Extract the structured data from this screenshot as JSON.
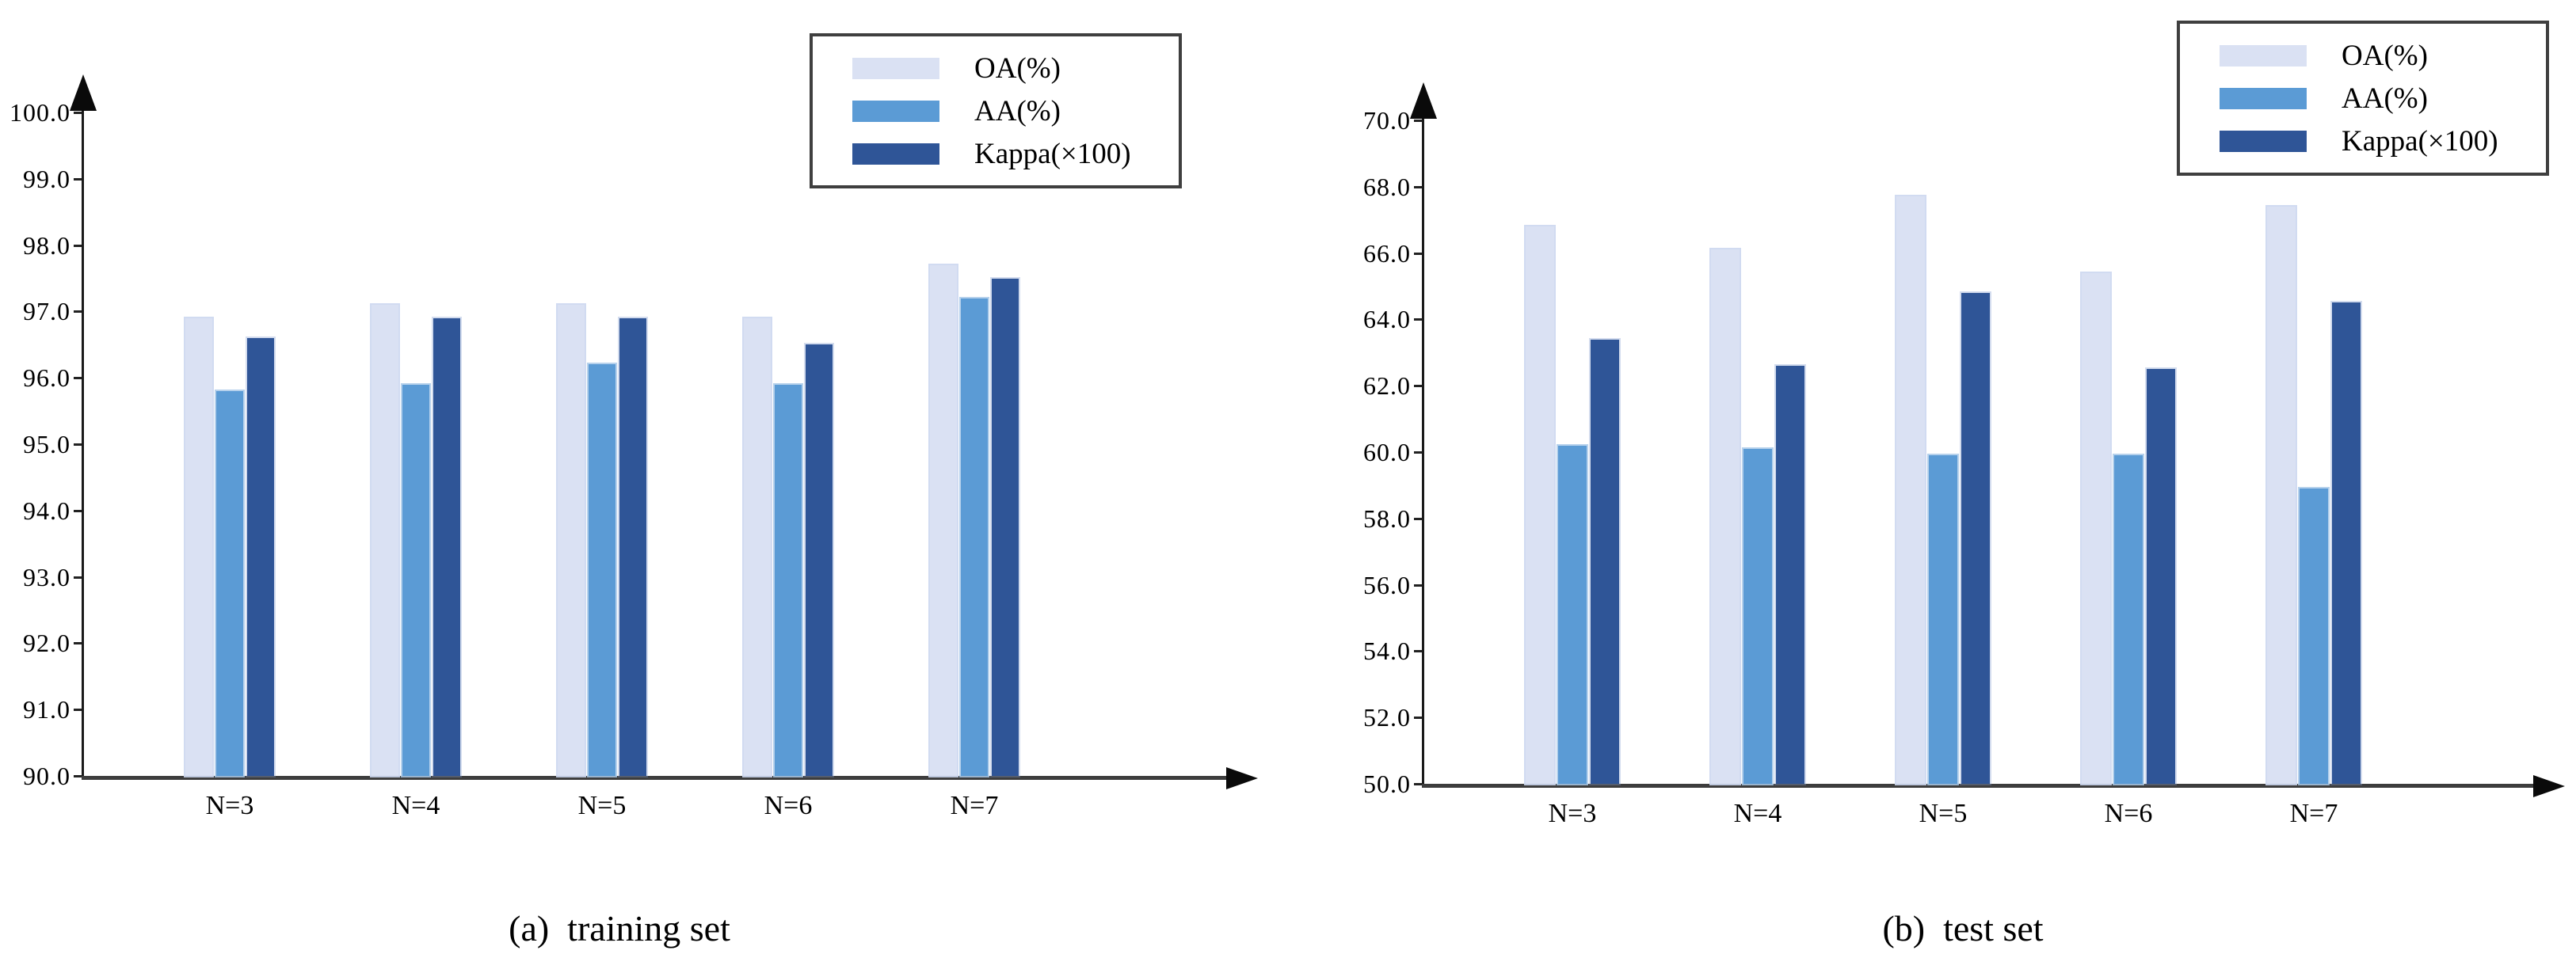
{
  "figure": {
    "background": "#ffffff"
  },
  "series_colors": {
    "OA": "#dae1f3",
    "AA": "#5b9bd5",
    "Kappa": "#2f5597"
  },
  "axis_colors": {
    "y_axis": "#1a1a1a",
    "x_axis": "#3d3d3d",
    "tick_text": "#000000"
  },
  "legend": {
    "items": [
      {
        "series": "OA",
        "label": "OA(%)"
      },
      {
        "series": "AA",
        "label": "AA(%)"
      },
      {
        "series": "Kappa",
        "label": "Kappa(×100)"
      }
    ]
  },
  "chart_data": [
    {
      "id": "training",
      "type": "bar",
      "title": "(a)  training set",
      "categories": [
        "N=3",
        "N=4",
        "N=5",
        "N=6",
        "N=7"
      ],
      "series": [
        {
          "name": "OA(%)",
          "values": [
            96.9,
            97.1,
            97.1,
            96.9,
            97.7
          ]
        },
        {
          "name": "AA(%)",
          "values": [
            95.8,
            95.9,
            96.2,
            95.9,
            97.2
          ]
        },
        {
          "name": "Kappa(×100)",
          "values": [
            96.6,
            96.9,
            96.9,
            96.5,
            97.5
          ]
        }
      ],
      "xlabel": "",
      "ylabel": "",
      "ylim": [
        90.0,
        100.0
      ],
      "ytick_step": 1.0,
      "ytick_labels": [
        "90.0",
        "91.0",
        "92.0",
        "93.0",
        "94.0",
        "95.0",
        "96.0",
        "97.0",
        "98.0",
        "99.0",
        "100.0"
      ],
      "grid": false,
      "legend_position": "top-right"
    },
    {
      "id": "test",
      "type": "bar",
      "title": "(b)  test set",
      "categories": [
        "N=3",
        "N=4",
        "N=5",
        "N=6",
        "N=7"
      ],
      "series": [
        {
          "name": "OA(%)",
          "values": [
            66.8,
            66.1,
            67.7,
            65.4,
            67.4
          ]
        },
        {
          "name": "AA(%)",
          "values": [
            60.2,
            60.1,
            59.9,
            59.9,
            58.9
          ]
        },
        {
          "name": "Kappa(×100)",
          "values": [
            63.4,
            62.6,
            64.8,
            62.5,
            64.5
          ]
        }
      ],
      "xlabel": "",
      "ylabel": "",
      "ylim": [
        50.0,
        70.0
      ],
      "ytick_step": 2.0,
      "ytick_labels": [
        "50.0",
        "52.0",
        "54.0",
        "56.0",
        "58.0",
        "60.0",
        "62.0",
        "64.0",
        "66.0",
        "68.0",
        "70.0"
      ],
      "grid": false,
      "legend_position": "top-right"
    }
  ]
}
